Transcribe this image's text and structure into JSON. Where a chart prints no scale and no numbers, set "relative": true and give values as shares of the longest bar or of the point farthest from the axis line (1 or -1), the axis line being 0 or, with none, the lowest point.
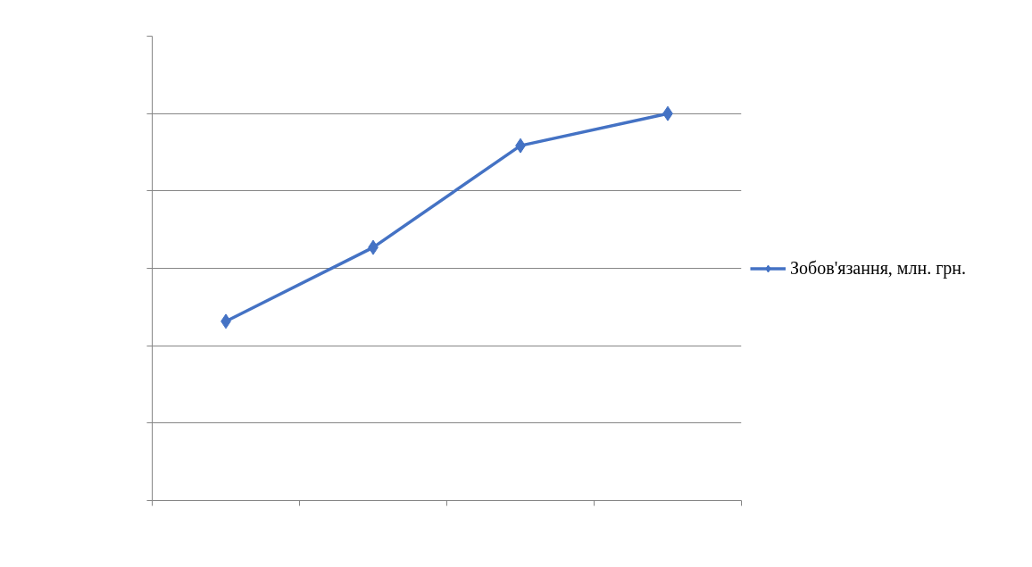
{
  "chart_data": {
    "type": "line",
    "relative": true,
    "categories": [
      null,
      null,
      null,
      null
    ],
    "series": [
      {
        "name": "Зобов'язання, млн. грн.",
        "color": "#4472c4",
        "values": [
          0.463,
          0.654,
          0.917,
          1
        ]
      }
    ],
    "grid": "y",
    "legend": "right",
    "marker": "diamond",
    "line_style": "solid",
    "tick_labels": false
  }
}
